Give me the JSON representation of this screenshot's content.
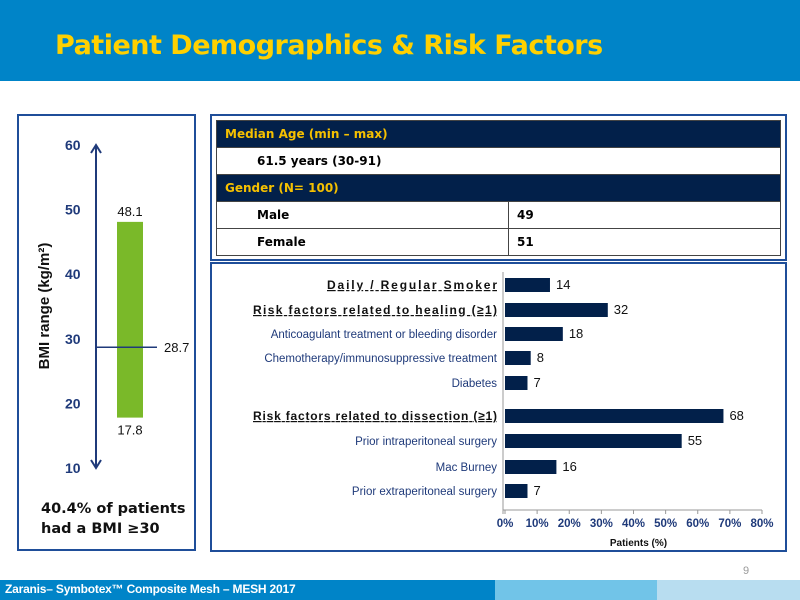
{
  "header": {
    "title": "Patient Demographics & Risk Factors"
  },
  "colors": {
    "header_bg": "#0084C8",
    "title": "#FFD000",
    "table_header_bg": "#02204A",
    "table_header_text": "#F5C000",
    "bar": "#02204A",
    "bmi_bar": "#7AB929",
    "axis": "#1F3A7A"
  },
  "demographics": {
    "median_age_header": "Median Age (min – max)",
    "median_age_value": "61.5 years (30-91)",
    "gender_header": "Gender (N= 100)",
    "rows": [
      {
        "label": "Male",
        "value": "49"
      },
      {
        "label": "Female",
        "value": "51"
      }
    ]
  },
  "bmi_note": {
    "line1": "40.4% of patients",
    "line2": "had a BMI ≥30"
  },
  "footer": {
    "text": "Zaranis– Symbotex™ Composite Mesh – MESH 2017",
    "page_number": "9"
  },
  "chart_data": [
    {
      "type": "bar",
      "orientation": "vertical-range",
      "title": "",
      "ylabel": "BMI range (kg/m²)",
      "ylim": [
        10,
        60
      ],
      "yticks": [
        "10",
        "20",
        "30",
        "40",
        "50",
        "60"
      ],
      "range": {
        "min": 17.8,
        "max": 48.1,
        "median": 28.7
      },
      "labels": {
        "min": "17.8",
        "max": "48.1",
        "median": "28.7"
      }
    },
    {
      "type": "bar",
      "orientation": "horizontal",
      "xlabel": "Patients (%)",
      "xlim": [
        0,
        80
      ],
      "xticks": [
        "0%",
        "10%",
        "20%",
        "30%",
        "40%",
        "50%",
        "60%",
        "70%",
        "80%"
      ],
      "categories": [
        {
          "label": "Daily / Regular Smoker",
          "value": 14,
          "heading": true
        },
        {
          "label": "Risk factors related to healing (≥1)",
          "value": 32,
          "heading": true
        },
        {
          "label": "Anticoagulant treatment or bleeding disorder",
          "value": 18,
          "heading": false
        },
        {
          "label": "Chemotherapy/immunosuppressive treatment",
          "value": 8,
          "heading": false
        },
        {
          "label": "Diabetes",
          "value": 7,
          "heading": false
        },
        {
          "label": "Risk factors related to dissection (≥1)",
          "value": 68,
          "heading": true
        },
        {
          "label": "Prior intraperitoneal surgery",
          "value": 55,
          "heading": false
        },
        {
          "label": "Mac Burney",
          "value": 16,
          "heading": false
        },
        {
          "label": "Prior extraperitoneal surgery",
          "value": 7,
          "heading": false
        }
      ]
    }
  ]
}
